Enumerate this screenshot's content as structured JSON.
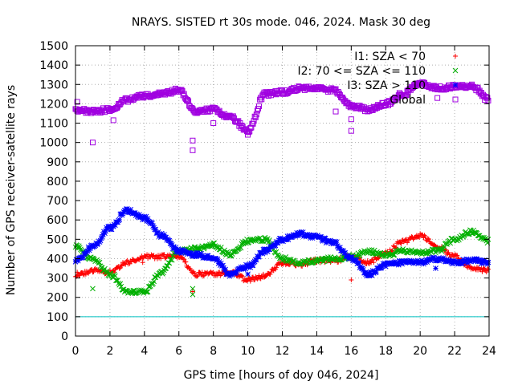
{
  "chart_data": {
    "type": "scatter",
    "title": "NRAYS. SISTED rt 30s mode. 046, 2024. Mask 30 deg",
    "xlabel": "GPS time [hours of doy 046, 2024]",
    "ylabel": "Number of GPS receiver-satellite rays",
    "xlim": [
      0,
      24
    ],
    "ylim": [
      0,
      1500
    ],
    "x_ticks": [
      0,
      2,
      4,
      6,
      8,
      10,
      12,
      14,
      16,
      18,
      20,
      22,
      24
    ],
    "y_ticks": [
      0,
      100,
      200,
      300,
      400,
      500,
      600,
      700,
      800,
      900,
      1000,
      1100,
      1200,
      1300,
      1400,
      1500
    ],
    "grid": true,
    "legend_position": "top-right",
    "reference_line": {
      "value": 100,
      "color": "#00c0c0"
    },
    "series": [
      {
        "name": "I1: SZA < 70",
        "marker": "+",
        "color": "#ff0000",
        "x": [
          0,
          1,
          2,
          3,
          4,
          5,
          6,
          7,
          8,
          9,
          10,
          11,
          12,
          13,
          14,
          15,
          16,
          17,
          18,
          19,
          20,
          21,
          22,
          23,
          24
        ],
        "y": [
          310,
          340,
          330,
          380,
          410,
          410,
          410,
          320,
          320,
          330,
          290,
          310,
          380,
          370,
          390,
          390,
          410,
          380,
          430,
          490,
          520,
          460,
          410,
          350,
          340
        ],
        "outliers": [
          [
            0.1,
            330
          ],
          [
            3.9,
            380
          ],
          [
            6.8,
            230
          ],
          [
            16.0,
            290
          ],
          [
            19.8,
            520
          ]
        ]
      },
      {
        "name": "I2: 70 <= SZA <= 110",
        "marker": "x",
        "color": "#00b000",
        "x": [
          0,
          1,
          2,
          3,
          4,
          5,
          6,
          7,
          8,
          9,
          10,
          11,
          12,
          13,
          14,
          15,
          16,
          17,
          18,
          19,
          20,
          21,
          22,
          23,
          24
        ],
        "y": [
          460,
          400,
          320,
          230,
          230,
          330,
          440,
          450,
          470,
          420,
          490,
          500,
          400,
          380,
          390,
          400,
          410,
          440,
          420,
          440,
          430,
          440,
          500,
          540,
          490
        ],
        "outliers": [
          [
            1.0,
            245
          ],
          [
            6.8,
            215
          ],
          [
            6.8,
            245
          ]
        ]
      },
      {
        "name": "I3: SZA > 110",
        "marker": "*",
        "color": "#0000ff",
        "x": [
          0,
          1,
          2,
          3,
          4,
          5,
          6,
          7,
          8,
          9,
          10,
          11,
          12,
          13,
          14,
          15,
          16,
          17,
          18,
          19,
          20,
          21,
          22,
          23,
          24
        ],
        "y": [
          390,
          460,
          560,
          650,
          610,
          520,
          440,
          420,
          400,
          320,
          360,
          440,
          500,
          530,
          510,
          480,
          400,
          320,
          370,
          380,
          380,
          400,
          380,
          390,
          380
        ],
        "outliers": [
          [
            10.0,
            320
          ],
          [
            20.9,
            350
          ]
        ]
      },
      {
        "name": "Global",
        "marker": "square",
        "color": "#a000e0",
        "x": [
          0,
          1,
          2,
          3,
          4,
          5,
          6,
          7,
          8,
          9,
          10,
          11,
          12,
          13,
          14,
          15,
          16,
          17,
          18,
          19,
          20,
          21,
          22,
          23,
          24
        ],
        "y": [
          1170,
          1160,
          1170,
          1220,
          1240,
          1250,
          1270,
          1160,
          1170,
          1130,
          1060,
          1250,
          1260,
          1280,
          1280,
          1270,
          1190,
          1170,
          1200,
          1250,
          1310,
          1280,
          1290,
          1290,
          1220
        ],
        "outliers": [
          [
            0.1,
            1210
          ],
          [
            1.0,
            1000
          ],
          [
            2.2,
            1115
          ],
          [
            6.8,
            960
          ],
          [
            6.8,
            1010
          ],
          [
            8.0,
            1100
          ],
          [
            10.0,
            1040
          ],
          [
            15.1,
            1160
          ],
          [
            16.0,
            1060
          ],
          [
            16.0,
            1120
          ],
          [
            21.0,
            1230
          ]
        ]
      }
    ],
    "legend_label_visible": [
      "I1: SZA < 70",
      "I2: 70 <= SZA <= 110",
      "I3: SZA > 110",
      "Global"
    ]
  }
}
